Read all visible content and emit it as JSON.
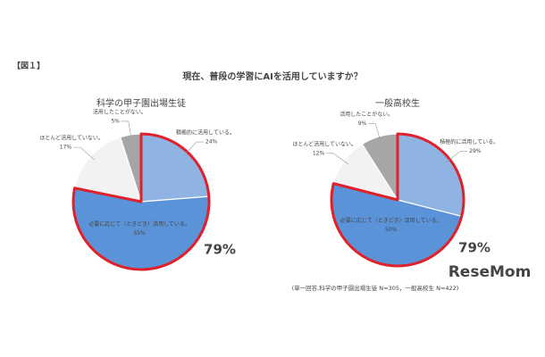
{
  "header": {
    "figure_label": "【図１】",
    "title": "現在、普段の学習にAIを活用していますか？",
    "note": "(単一回答,科学の甲子園出場生徒 N=305，一般高校生 N=422)",
    "logo": "ReseMom"
  },
  "chart_data": [
    {
      "type": "pie",
      "title": "科学の甲子園出場生徒",
      "categories": [
        "積極的に活用している。",
        "必要に応じて（ときどき）活用している。",
        "ほとんど活用していない。",
        "活用したことがない。"
      ],
      "values": [
        24,
        55,
        17,
        5
      ],
      "value_labels": [
        "24%",
        "55%",
        "17%",
        "5%"
      ],
      "colors": [
        "#8fb4e3",
        "#5b93d8",
        "#f2f2f2",
        "#a6a6a6"
      ],
      "annotation": "79%"
    },
    {
      "type": "pie",
      "title": "一般高校生",
      "categories": [
        "積極的に活用している。",
        "必要に応じて（ときどき）活用している。",
        "ほとんど活用していない。",
        "活用したことがない。"
      ],
      "values": [
        29,
        50,
        12,
        9
      ],
      "value_labels": [
        "29%",
        "50%",
        "12%",
        "9%"
      ],
      "colors": [
        "#8fb4e3",
        "#5b93d8",
        "#f2f2f2",
        "#a6a6a6"
      ],
      "annotation": "79%"
    }
  ]
}
